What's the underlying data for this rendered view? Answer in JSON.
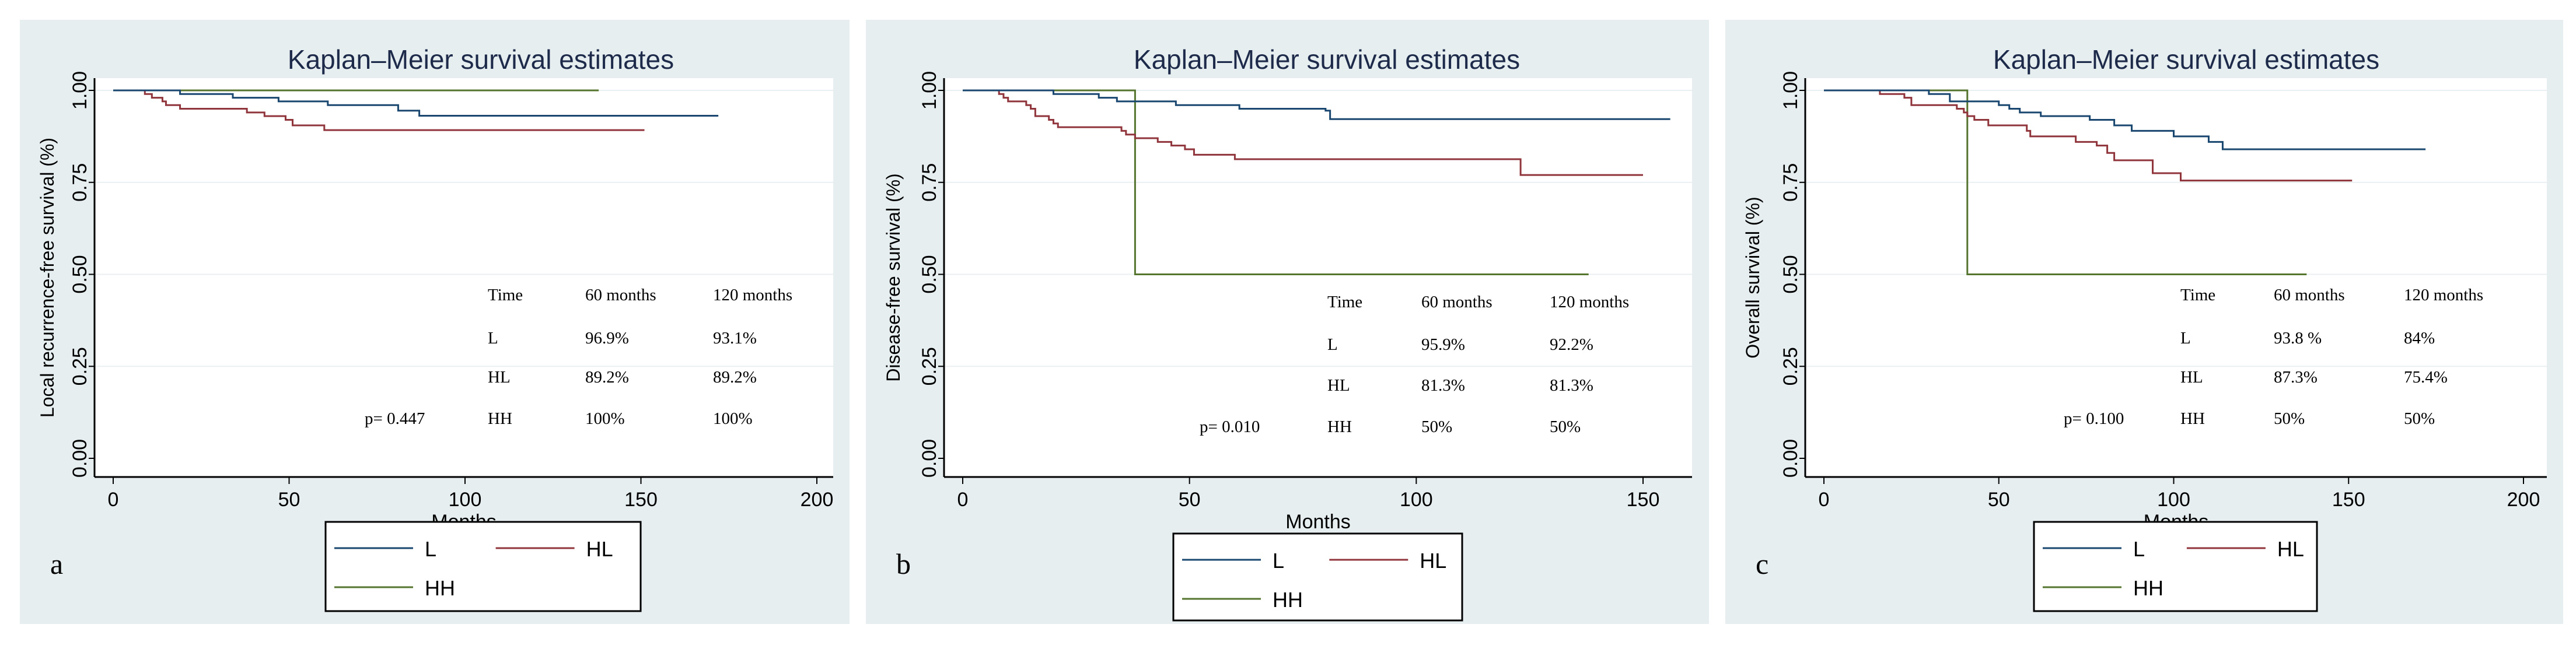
{
  "colors": {
    "L": "#1a476f",
    "HL": "#90353b",
    "HH": "#55752f",
    "panel_bg": "#e6eef0"
  },
  "chart_data": [
    {
      "type": "line",
      "panel_letter": "a",
      "title": "Kaplan–Meier survival estimates",
      "xlabel": "Months",
      "ylabel": "Local recurrence-free survival (%)",
      "xlim": [
        0,
        200
      ],
      "ylim": [
        0,
        1
      ],
      "xticks": [
        "0",
        "50",
        "100",
        "150",
        "200"
      ],
      "yticks": [
        "0.00",
        "0.25",
        "0.50",
        "0.75",
        "1.00"
      ],
      "grid": true,
      "legend": "bottom",
      "series": [
        {
          "name": "L",
          "steps": [
            [
              0,
              1
            ],
            [
              19,
              0.99
            ],
            [
              34,
              0.98
            ],
            [
              47,
              0.97
            ],
            [
              61,
              0.96
            ],
            [
              81,
              0.945
            ],
            [
              87,
              0.931
            ],
            [
              172,
              0.931
            ]
          ]
        },
        {
          "name": "HL",
          "steps": [
            [
              0,
              1
            ],
            [
              9,
              0.99
            ],
            [
              11,
              0.98
            ],
            [
              14,
              0.97
            ],
            [
              15,
              0.96
            ],
            [
              19,
              0.95
            ],
            [
              38,
              0.94
            ],
            [
              43,
              0.93
            ],
            [
              49,
              0.92
            ],
            [
              51,
              0.905
            ],
            [
              60,
              0.892
            ],
            [
              151,
              0.892
            ]
          ]
        },
        {
          "name": "HH",
          "steps": [
            [
              0,
              1
            ],
            [
              138,
              1
            ]
          ]
        }
      ],
      "annotation": {
        "p_value": "p= 0.447",
        "header": [
          "Time",
          "60 months",
          "120 months"
        ],
        "rows": [
          [
            "L",
            "96.9%",
            "93.1%"
          ],
          [
            "HL",
            "89.2%",
            "89.2%"
          ],
          [
            "HH",
            "100%",
            "100%"
          ]
        ]
      }
    },
    {
      "type": "line",
      "panel_letter": "b",
      "title": "Kaplan–Meier survival estimates",
      "xlabel": "Months",
      "ylabel": "Disease-free survival (%)",
      "xlim": [
        0,
        155
      ],
      "ylim": [
        0,
        1
      ],
      "xticks": [
        "0",
        "50",
        "100",
        "150"
      ],
      "yticks": [
        "0.00",
        "0.25",
        "0.50",
        "0.75",
        "1.00"
      ],
      "grid": true,
      "legend": "bottom",
      "series": [
        {
          "name": "L",
          "steps": [
            [
              0,
              1
            ],
            [
              20,
              0.99
            ],
            [
              30,
              0.98
            ],
            [
              34,
              0.97
            ],
            [
              47,
              0.96
            ],
            [
              61,
              0.95
            ],
            [
              80,
              0.945
            ],
            [
              81,
              0.922
            ],
            [
              156,
              0.922
            ]
          ]
        },
        {
          "name": "HL",
          "steps": [
            [
              0,
              1
            ],
            [
              8,
              0.99
            ],
            [
              9,
              0.98
            ],
            [
              10,
              0.97
            ],
            [
              14,
              0.96
            ],
            [
              15,
              0.95
            ],
            [
              16,
              0.93
            ],
            [
              19,
              0.92
            ],
            [
              20,
              0.91
            ],
            [
              21,
              0.9
            ],
            [
              35,
              0.89
            ],
            [
              36,
              0.88
            ],
            [
              38,
              0.87
            ],
            [
              43,
              0.86
            ],
            [
              46,
              0.85
            ],
            [
              49,
              0.84
            ],
            [
              51,
              0.825
            ],
            [
              60,
              0.813
            ],
            [
              123,
              0.77
            ],
            [
              150,
              0.77
            ]
          ]
        },
        {
          "name": "HH",
          "steps": [
            [
              0,
              1
            ],
            [
              38,
              0.5
            ],
            [
              138,
              0.5
            ]
          ]
        }
      ],
      "annotation": {
        "p_value": "p= 0.010",
        "header": [
          "Time",
          "60 months",
          "120 months"
        ],
        "rows": [
          [
            "L",
            "95.9%",
            "92.2%"
          ],
          [
            "HL",
            "81.3%",
            "81.3%"
          ],
          [
            "HH",
            "50%",
            "50%"
          ]
        ]
      }
    },
    {
      "type": "line",
      "panel_letter": "c",
      "title": "Kaplan–Meier survival estimates",
      "xlabel": "Months",
      "ylabel": "Overall survival (%)",
      "xlim": [
        0,
        200
      ],
      "ylim": [
        0,
        1
      ],
      "xticks": [
        "0",
        "50",
        "100",
        "150",
        "200"
      ],
      "yticks": [
        "0.00",
        "0.25",
        "0.50",
        "0.75",
        "1.00"
      ],
      "grid": true,
      "legend": "bottom",
      "series": [
        {
          "name": "L",
          "steps": [
            [
              0,
              1
            ],
            [
              30,
              0.99
            ],
            [
              36,
              0.97
            ],
            [
              50,
              0.96
            ],
            [
              53,
              0.95
            ],
            [
              56,
              0.94
            ],
            [
              62,
              0.93
            ],
            [
              76,
              0.92
            ],
            [
              83,
              0.905
            ],
            [
              88,
              0.89
            ],
            [
              100,
              0.875
            ],
            [
              110,
              0.86
            ],
            [
              114,
              0.84
            ],
            [
              172,
              0.84
            ]
          ]
        },
        {
          "name": "HL",
          "steps": [
            [
              0,
              1
            ],
            [
              16,
              0.99
            ],
            [
              23,
              0.98
            ],
            [
              25,
              0.96
            ],
            [
              38,
              0.95
            ],
            [
              40,
              0.94
            ],
            [
              41,
              0.93
            ],
            [
              43,
              0.92
            ],
            [
              47,
              0.905
            ],
            [
              58,
              0.89
            ],
            [
              59,
              0.875
            ],
            [
              72,
              0.86
            ],
            [
              78,
              0.85
            ],
            [
              81,
              0.83
            ],
            [
              83,
              0.81
            ],
            [
              94,
              0.775
            ],
            [
              102,
              0.755
            ],
            [
              151,
              0.755
            ]
          ]
        },
        {
          "name": "HH",
          "steps": [
            [
              0,
              1
            ],
            [
              41,
              0.5
            ],
            [
              138,
              0.5
            ]
          ]
        }
      ],
      "annotation": {
        "p_value": "p= 0.100",
        "header": [
          "Time",
          "60 months",
          "120 months"
        ],
        "rows": [
          [
            "L",
            "93.8 %",
            "84%"
          ],
          [
            "HL",
            "87.3%",
            "75.4%"
          ],
          [
            "HH",
            "50%",
            "50%"
          ]
        ]
      }
    }
  ]
}
